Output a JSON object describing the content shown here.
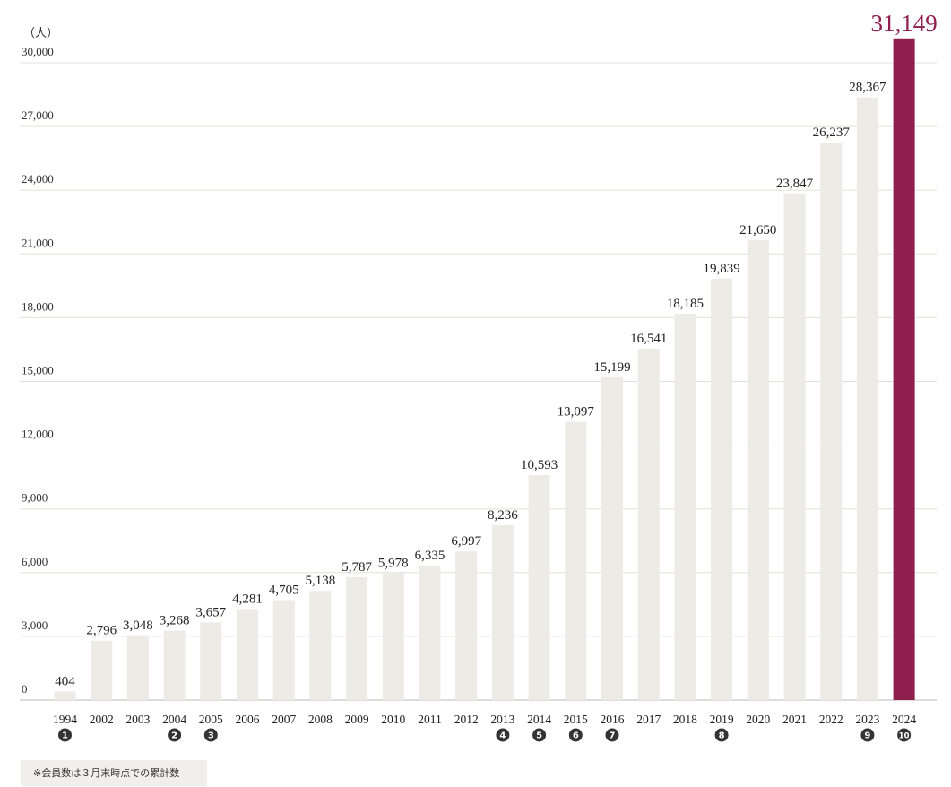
{
  "chart_data": {
    "type": "bar",
    "unit_label": "（人）",
    "categories": [
      "1994",
      "2002",
      "2003",
      "2004",
      "2005",
      "2006",
      "2007",
      "2008",
      "2009",
      "2010",
      "2011",
      "2012",
      "2013",
      "2014",
      "2015",
      "2016",
      "2017",
      "2018",
      "2019",
      "2020",
      "2021",
      "2022",
      "2023",
      "2024"
    ],
    "value_labels": [
      "404",
      "2,796",
      "3,048",
      "3,268",
      "3,657",
      "4,281",
      "4,705",
      "5,138",
      "5,787",
      "5,978",
      "6,335",
      "6,997",
      "8,236",
      "10,593",
      "13,097",
      "15,199",
      "16,541",
      "18,185",
      "19,839",
      "21,650",
      "23,847",
      "26,237",
      "28,367",
      "31,149"
    ],
    "values": [
      404,
      2796,
      3048,
      3268,
      3657,
      4281,
      4705,
      5138,
      5787,
      5978,
      6335,
      6997,
      8236,
      10593,
      13097,
      15199,
      16541,
      18185,
      19839,
      21650,
      23847,
      26237,
      28367,
      31149
    ],
    "markers": [
      "1",
      "",
      "",
      "2",
      "3",
      "",
      "",
      "",
      "",
      "",
      "",
      "",
      "4",
      "5",
      "6",
      "7",
      "",
      "",
      "8",
      "",
      "",
      "",
      "9",
      "10"
    ],
    "ylim": [
      0,
      30000
    ],
    "yticks": [
      0,
      3000,
      6000,
      9000,
      12000,
      15000,
      18000,
      21000,
      24000,
      27000,
      30000
    ],
    "ytick_labels": [
      "0",
      "3,000",
      "6,000",
      "9,000",
      "12,000",
      "15,000",
      "18,000",
      "21,000",
      "24,000",
      "27,000",
      "30,000"
    ],
    "highlight_index": 23,
    "colors": {
      "bar": "#edebe6",
      "highlight": "#8e1f4f",
      "grid": "#e2e0dc",
      "axis": "#bdbab4",
      "marker": "#333333"
    },
    "grid": true
  },
  "footnote": "※会員数は３月末時点での累計数"
}
